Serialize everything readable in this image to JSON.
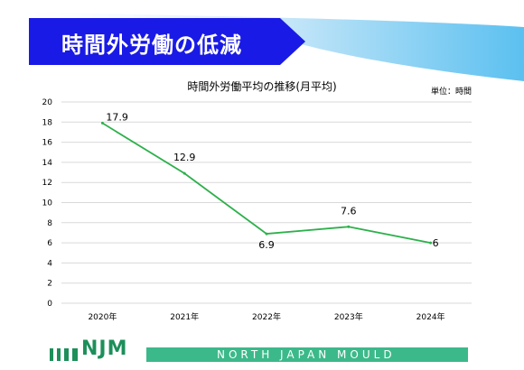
{
  "header": {
    "title": "時間外労働の低減",
    "banner_color": "#1a1ae6",
    "accent_color": "#5bc0f0"
  },
  "chart_data": {
    "type": "line",
    "title": "時間外労働平均の推移(月平均)",
    "unit_note": "単位：時間",
    "categories": [
      "2020年",
      "2021年",
      "2022年",
      "2023年",
      "2024年"
    ],
    "series": [
      {
        "values": [
          17.9,
          12.9,
          6.9,
          7.6,
          6
        ],
        "labels": [
          "17.9",
          "12.9",
          "6.9",
          "7.6",
          "6"
        ],
        "color": "#2db04b"
      }
    ],
    "ylim": [
      0,
      20
    ],
    "y_ticks": [
      "0",
      "2",
      "4",
      "6",
      "8",
      "10",
      "12",
      "14",
      "16",
      "18",
      "20"
    ],
    "grid": true
  },
  "footer": {
    "logo": "NJM",
    "company": "NORTH JAPAN MOULD",
    "bar_color": "#3cb98a"
  }
}
